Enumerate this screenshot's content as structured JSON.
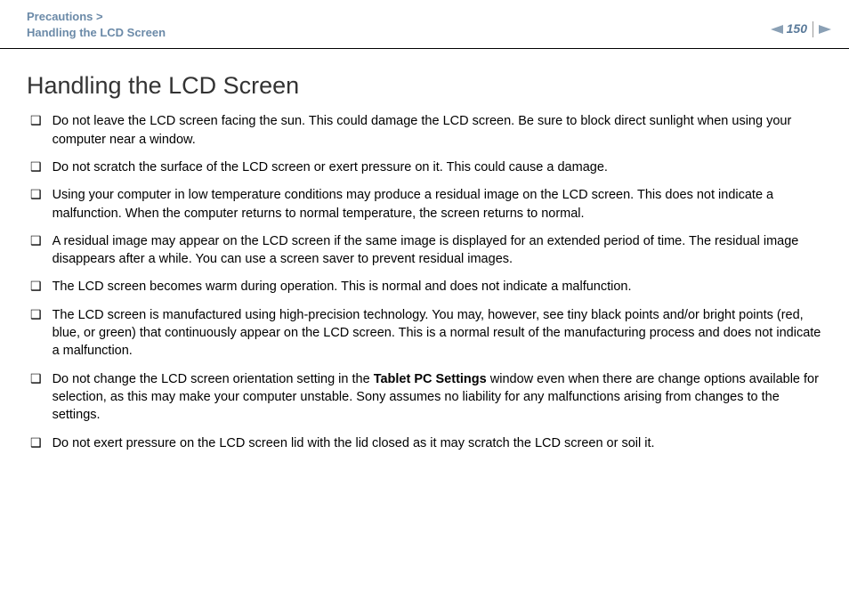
{
  "header": {
    "breadcrumb_section": "Precautions >",
    "breadcrumb_page": "Handling the LCD Screen",
    "page_number": "150",
    "arrow_color": "#8aa0b5",
    "breadcrumb_color": "#6b8aa8"
  },
  "content": {
    "title": "Handling the LCD Screen",
    "bullets": [
      {
        "text": "Do not leave the LCD screen facing the sun. This could damage the LCD screen. Be sure to block direct sunlight when using your computer near a window."
      },
      {
        "text": "Do not scratch the surface of the LCD screen or exert pressure on it. This could cause a damage."
      },
      {
        "text": "Using your computer in low temperature conditions may produce a residual image on the LCD screen. This does not indicate a malfunction. When the computer returns to normal temperature, the screen returns to normal."
      },
      {
        "text": "A residual image may appear on the LCD screen if the same image is displayed for an extended period of time. The residual image disappears after a while. You can use a screen saver to prevent residual images."
      },
      {
        "text": "The LCD screen becomes warm during operation. This is normal and does not indicate a malfunction."
      },
      {
        "text": "The LCD screen is manufactured using high-precision technology. You may, however, see tiny black points and/or bright points (red, blue, or green) that continuously appear on the LCD screen. This is a normal result of the manufacturing process and does not indicate a malfunction."
      },
      {
        "text_pre": "Do not change the LCD screen orientation setting in the ",
        "bold": "Tablet PC Settings",
        "text_post": " window even when there are change options available for selection, as this may make your computer unstable. Sony assumes no liability for any malfunctions arising from changes to the settings."
      },
      {
        "text": "Do not exert pressure on the LCD screen lid with the lid closed as it may scratch the LCD screen or soil it."
      }
    ],
    "bullet_marker": "❑"
  },
  "style": {
    "title_fontsize": 27,
    "body_fontsize": 14.5,
    "text_color": "#000000",
    "background_color": "#ffffff"
  }
}
